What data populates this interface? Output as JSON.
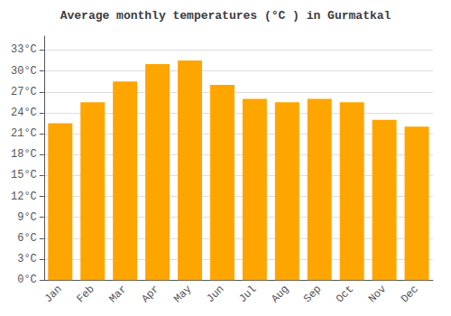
{
  "chart_data": {
    "type": "bar",
    "title": "Average monthly temperatures (°C ) in Gurmatkal",
    "categories": [
      "Jan",
      "Feb",
      "Mar",
      "Apr",
      "May",
      "Jun",
      "Jul",
      "Aug",
      "Sep",
      "Oct",
      "Nov",
      "Dec"
    ],
    "values": [
      22.5,
      25.5,
      28.5,
      31.0,
      31.5,
      28.0,
      26.0,
      25.5,
      26.0,
      25.5,
      23.0,
      22.0
    ],
    "color": "#FFA500",
    "ylim": [
      0,
      35
    ],
    "yticks": [
      {
        "value": 0,
        "label": "0°C"
      },
      {
        "value": 3,
        "label": "3°C"
      },
      {
        "value": 6,
        "label": "6°C"
      },
      {
        "value": 9,
        "label": "9°C"
      },
      {
        "value": 12,
        "label": "12°C"
      },
      {
        "value": 15,
        "label": "15°C"
      },
      {
        "value": 18,
        "label": "18°C"
      },
      {
        "value": 21,
        "label": "21°C"
      },
      {
        "value": 24,
        "label": "24°C"
      },
      {
        "value": 27,
        "label": "27°C"
      },
      {
        "value": 30,
        "label": "30°C"
      },
      {
        "value": 33,
        "label": "33°C"
      }
    ],
    "grid": true
  }
}
